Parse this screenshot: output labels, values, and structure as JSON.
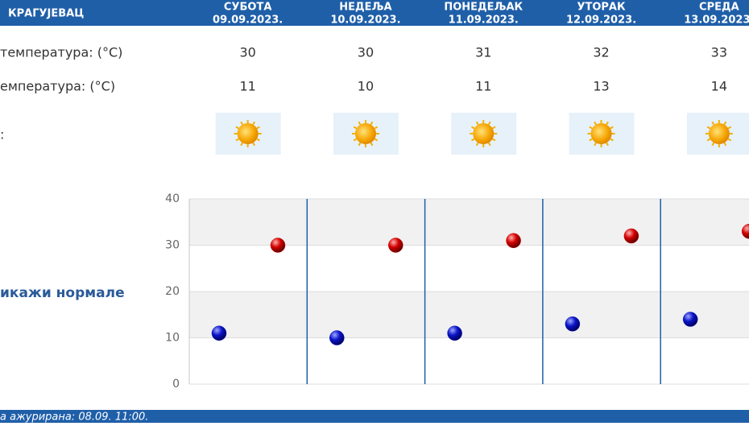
{
  "header": {
    "city": "КРАГУЈЕВАЦ",
    "days": [
      {
        "name": "СУБОТА",
        "date": "09.09.2023."
      },
      {
        "name": "НЕДЕЉА",
        "date": "10.09.2023."
      },
      {
        "name": "ПОНЕДЕЉАК",
        "date": "11.09.2023."
      },
      {
        "name": "УТОРАК",
        "date": "12.09.2023."
      },
      {
        "name": "СРЕДА",
        "date": "13.09.2023."
      }
    ]
  },
  "rows": [
    {
      "label": "температура: (°C)",
      "values": [
        30,
        30,
        31,
        32,
        33
      ]
    },
    {
      "label": "емпература: (°C)",
      "values": [
        11,
        10,
        11,
        13,
        14
      ]
    },
    {
      "label": ":"
    }
  ],
  "toggle": "икажи нормале",
  "chart": {
    "type": "scatter",
    "ylim": [
      0,
      40
    ],
    "yticks": [
      0,
      10,
      20,
      30,
      40
    ],
    "series": [
      {
        "color": "#d40000",
        "values": [
          30,
          30,
          31,
          32,
          33
        ]
      },
      {
        "color": "#0a14c8",
        "values": [
          11,
          10,
          11,
          13,
          14
        ]
      }
    ]
  },
  "footer": "а ажурирана:  08.09.  11:00."
}
